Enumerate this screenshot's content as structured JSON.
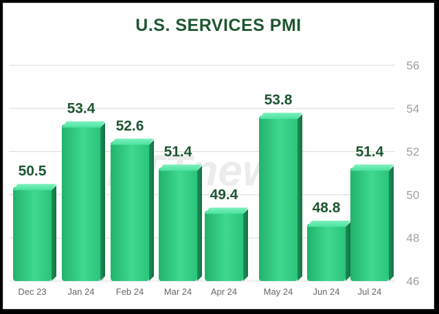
{
  "chart_data": {
    "type": "bar",
    "title": "U.S. SERVICES PMI",
    "xlabel": "",
    "ylabel": "",
    "categories": [
      "Dec 23",
      "Jan 24",
      "Feb 24",
      "Mar 24",
      "Apr 24",
      "May 24",
      "Jun 24",
      "Jul 24"
    ],
    "values": [
      50.5,
      53.4,
      52.6,
      51.4,
      49.4,
      53.8,
      48.8,
      51.4
    ],
    "ylim": [
      46,
      56
    ],
    "yticks": [
      46,
      48,
      50,
      52,
      54,
      56
    ],
    "y_axis_side": "right",
    "grid": true,
    "bar_color": "#3ed48a",
    "title_color": "#1e5631",
    "label_color": "#1e5631"
  },
  "watermark": "RTTnews"
}
